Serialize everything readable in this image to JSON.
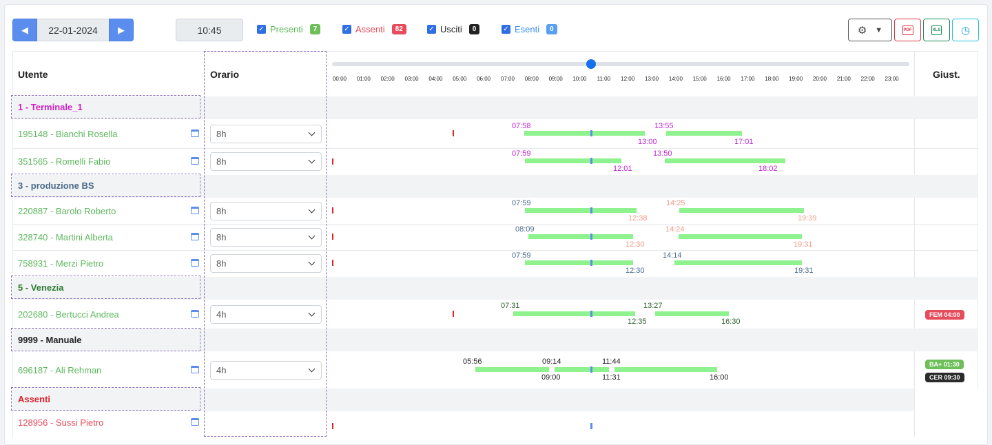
{
  "toolbar": {
    "date": "22-01-2024",
    "time": "10:45",
    "filters": [
      {
        "label": "Presenti",
        "count": "7",
        "color": "#5cb85c",
        "badge": "#5cb85c"
      },
      {
        "label": "Assenti",
        "count": "82",
        "color": "#e74c5c",
        "badge": "#e74c5c"
      },
      {
        "label": "Usciti",
        "count": "0",
        "color": "#222222",
        "badge": "#222222"
      },
      {
        "label": "Esenti",
        "count": "0",
        "color": "#3d8ef0",
        "badge": "#5aa0f0"
      }
    ],
    "icons": {
      "settings": "gear-icon",
      "pdf": "pdf-file-icon",
      "xls": "xls-file-icon",
      "history": "clock-history-icon"
    },
    "pdf_label": "PDF",
    "xls_label": "XLS"
  },
  "headers": {
    "user": "Utente",
    "schedule": "Orario",
    "justification": "Giust."
  },
  "timeline": {
    "hours": [
      "00:00",
      "01:00",
      "02:00",
      "03:00",
      "04:00",
      "05:00",
      "06:00",
      "07:00",
      "08:00",
      "09:00",
      "10:00",
      "11:00",
      "12:00",
      "13:00",
      "14:00",
      "15:00",
      "16:00",
      "17:00",
      "18:00",
      "19:00",
      "20:00",
      "21:00",
      "22:00",
      "23:00"
    ],
    "current_time": "10:45"
  },
  "groups": [
    {
      "label": "1 - Terminale_1",
      "color": "#d020c8"
    },
    {
      "label": "3 - produzione BS",
      "color": "#4a6a8a"
    },
    {
      "label": "5 - Venezia",
      "color": "#2e7d32"
    },
    {
      "label": "9999 - Manuale",
      "color": "#222222"
    },
    {
      "label": "Assenti",
      "color": "#e0202a"
    }
  ],
  "users": [
    {
      "name": "195148 - Bianchi Rosella",
      "schedule": "8h",
      "in1": "07:58",
      "out1": "13:00",
      "in2": "13:55",
      "out2": "17:01",
      "color": "#c026d3"
    },
    {
      "name": "351565 - Romelli Fabio",
      "schedule": "8h",
      "in1": "07:59",
      "out1": "12:01",
      "in2": "13:50",
      "out2": "18:02",
      "color": "#c026d3"
    },
    {
      "name": "220887 - Barolo Roberto",
      "schedule": "8h",
      "in1": "07:59",
      "out1": "12:38",
      "in2": "14:25",
      "out2": "19:39"
    },
    {
      "name": "328740 - Martini Alberta",
      "schedule": "8h",
      "in1": "08:09",
      "out1": "12:30",
      "in2": "14:24",
      "out2": "19:31"
    },
    {
      "name": "758931 - Merzi Pietro",
      "schedule": "8h",
      "in1": "07:59",
      "out1": "12:30",
      "in2": "14:14",
      "out2": "19:31"
    },
    {
      "name": "202680 - Bertucci Andrea",
      "schedule": "4h",
      "in1": "07:31",
      "out1": "12:35",
      "in2": "13:27",
      "out2": "16:30",
      "badge": "FEM 04:00"
    },
    {
      "name": "696187 - Ali Rehman",
      "schedule": "4h",
      "in1": "05:56",
      "out1": "09:00",
      "in2": "09:14",
      "out2": "11:31",
      "in3": "11:44",
      "out3": "16:00",
      "badges": [
        "BA+ 01:30",
        "CER 09:30"
      ]
    },
    {
      "name": "128956 - Sussi Pietro"
    }
  ]
}
